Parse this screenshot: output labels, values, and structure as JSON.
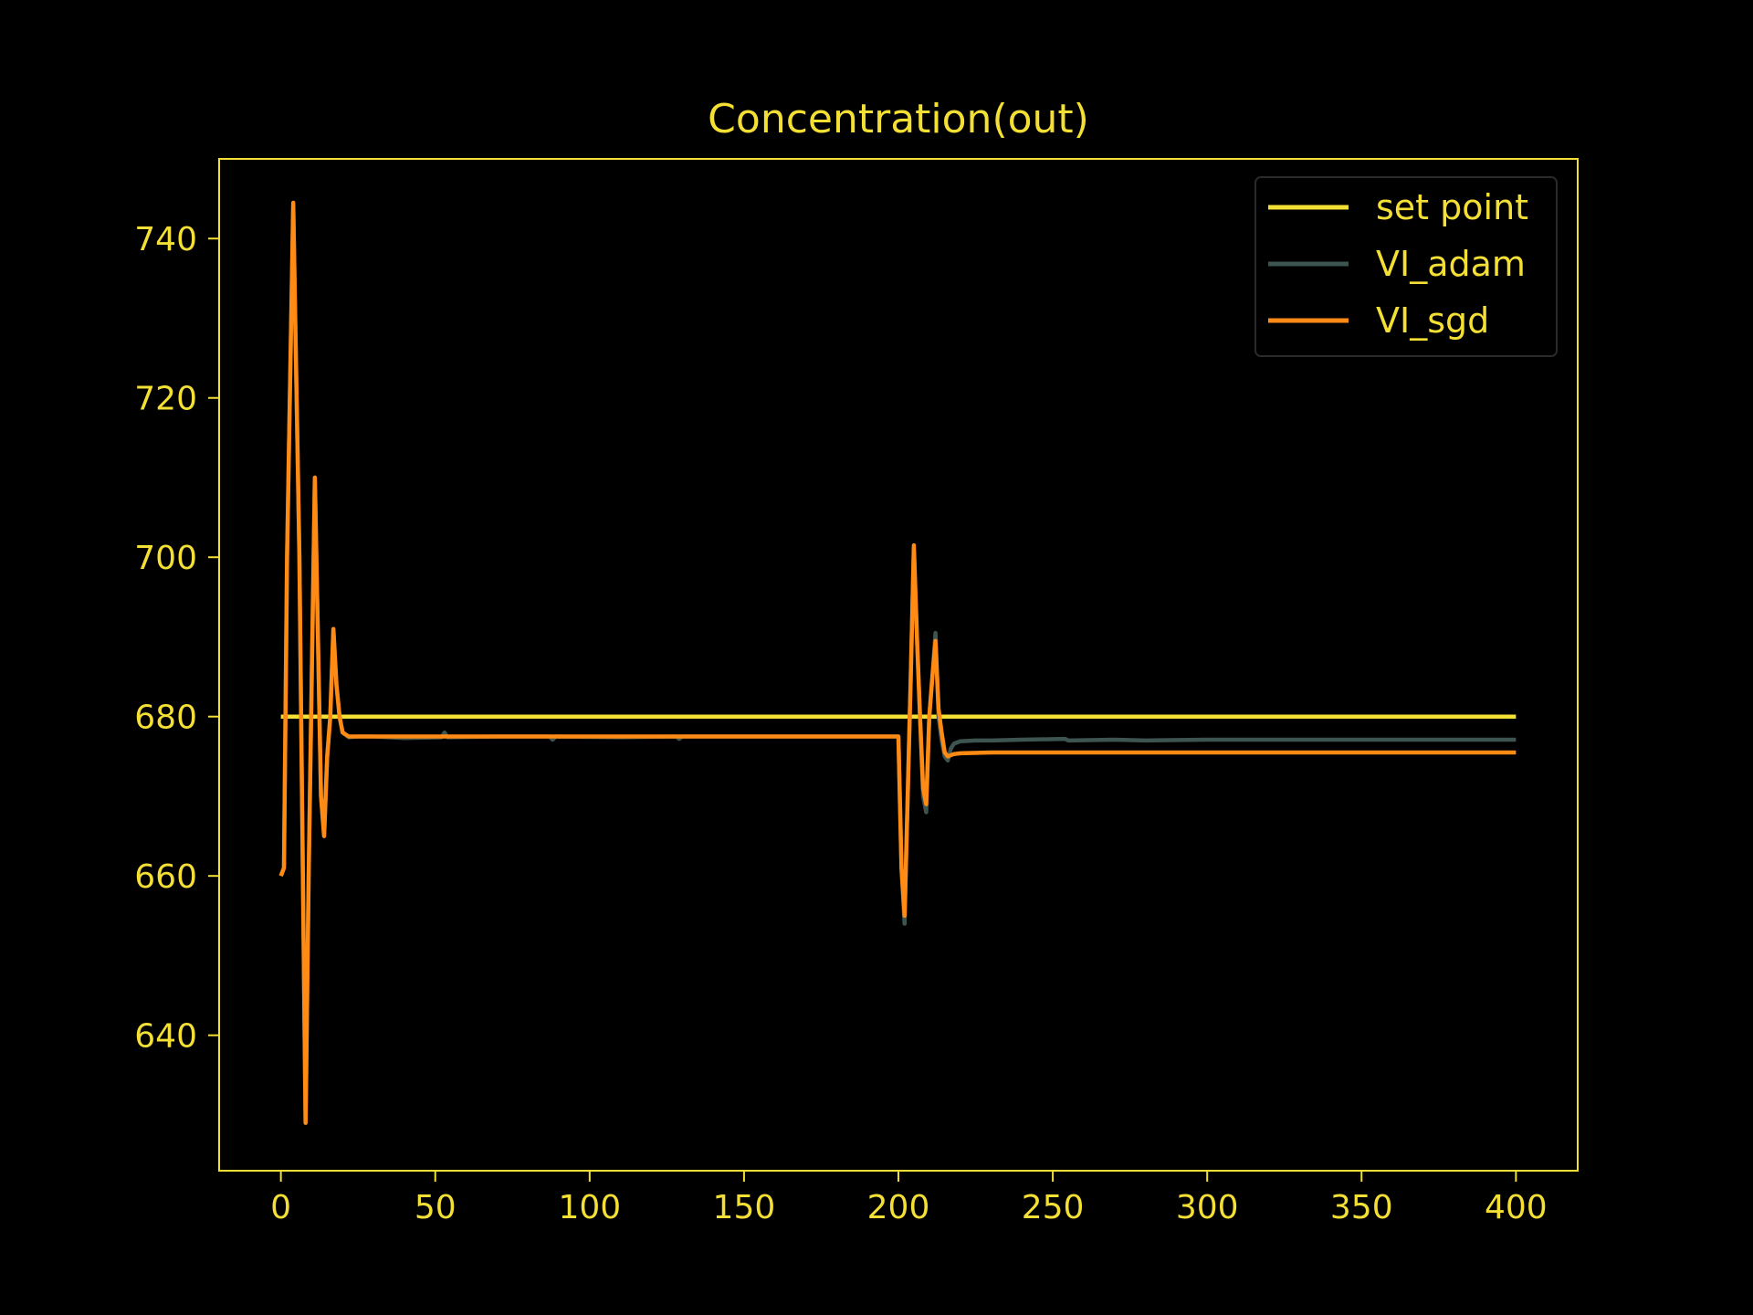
{
  "colors": {
    "background": "#000000",
    "foreground": "#f4df34",
    "set_point": "#f4df34",
    "vi_adam": "#3d5450",
    "vi_sgd": "#ff8a14",
    "legend_bg": "#000000",
    "legend_border": "#2a2a2a"
  },
  "chart_data": {
    "type": "line",
    "title": "Concentration(out)",
    "xlabel": "",
    "ylabel": "",
    "xlim": [
      -20,
      420
    ],
    "ylim": [
      623,
      750
    ],
    "grid": false,
    "legend_position": "upper right",
    "x_ticks": [
      0,
      50,
      100,
      150,
      200,
      250,
      300,
      350,
      400
    ],
    "y_ticks": [
      640,
      660,
      680,
      700,
      720,
      740
    ],
    "series": [
      {
        "name": "set point",
        "color_key": "set_point",
        "points": [
          [
            0,
            680
          ],
          [
            400,
            680
          ]
        ]
      },
      {
        "name": "VI_adam",
        "color_key": "vi_adam",
        "points": [
          [
            0,
            660
          ],
          [
            1,
            661
          ],
          [
            2,
            700
          ],
          [
            4,
            744
          ],
          [
            6,
            700
          ],
          [
            8,
            629
          ],
          [
            9,
            660
          ],
          [
            11,
            710
          ],
          [
            12,
            690
          ],
          [
            13,
            670
          ],
          [
            14,
            665
          ],
          [
            15,
            675
          ],
          [
            16,
            680
          ],
          [
            17,
            691
          ],
          [
            18,
            684
          ],
          [
            19,
            680
          ],
          [
            20,
            678
          ],
          [
            22,
            677.4
          ],
          [
            25,
            677.5
          ],
          [
            30,
            677.5
          ],
          [
            40,
            677.3
          ],
          [
            52,
            677.4
          ],
          [
            53,
            678.0
          ],
          [
            54,
            677.4
          ],
          [
            70,
            677.5
          ],
          [
            87,
            677.5
          ],
          [
            88,
            677.1
          ],
          [
            89,
            677.5
          ],
          [
            110,
            677.4
          ],
          [
            128,
            677.5
          ],
          [
            129,
            677.2
          ],
          [
            130,
            677.5
          ],
          [
            150,
            677.5
          ],
          [
            170,
            677.5
          ],
          [
            190,
            677.5
          ],
          [
            200,
            677.5
          ],
          [
            201,
            661
          ],
          [
            202,
            654
          ],
          [
            203,
            670
          ],
          [
            204,
            685
          ],
          [
            205,
            701
          ],
          [
            206,
            690
          ],
          [
            207,
            680
          ],
          [
            208,
            670
          ],
          [
            209,
            668
          ],
          [
            210,
            680
          ],
          [
            211,
            685
          ],
          [
            212,
            690.5
          ],
          [
            213,
            680
          ],
          [
            214,
            677
          ],
          [
            215,
            675
          ],
          [
            216,
            674.5
          ],
          [
            217,
            676
          ],
          [
            218,
            676.6
          ],
          [
            220,
            676.9
          ],
          [
            225,
            677.0
          ],
          [
            230,
            677.0
          ],
          [
            240,
            677.1
          ],
          [
            254,
            677.2
          ],
          [
            255,
            677.0
          ],
          [
            270,
            677.1
          ],
          [
            280,
            677.0
          ],
          [
            300,
            677.1
          ],
          [
            320,
            677.1
          ],
          [
            340,
            677.1
          ],
          [
            360,
            677.1
          ],
          [
            380,
            677.1
          ],
          [
            400,
            677.1
          ]
        ]
      },
      {
        "name": "VI_sgd",
        "color_key": "vi_sgd",
        "points": [
          [
            0,
            660
          ],
          [
            1,
            661
          ],
          [
            2,
            700
          ],
          [
            4,
            744.5
          ],
          [
            6,
            700
          ],
          [
            8,
            629
          ],
          [
            9,
            660
          ],
          [
            11,
            710
          ],
          [
            12,
            690
          ],
          [
            13,
            670
          ],
          [
            14,
            665
          ],
          [
            15,
            675
          ],
          [
            16,
            680
          ],
          [
            17,
            691
          ],
          [
            18,
            684
          ],
          [
            19,
            680
          ],
          [
            20,
            678
          ],
          [
            22,
            677.5
          ],
          [
            25,
            677.5
          ],
          [
            50,
            677.5
          ],
          [
            100,
            677.5
          ],
          [
            150,
            677.5
          ],
          [
            200,
            677.5
          ],
          [
            201,
            661
          ],
          [
            202,
            655
          ],
          [
            203,
            670
          ],
          [
            204,
            685
          ],
          [
            205,
            701.5
          ],
          [
            206,
            690
          ],
          [
            207,
            680
          ],
          [
            208,
            671
          ],
          [
            209,
            669
          ],
          [
            210,
            680
          ],
          [
            211,
            685
          ],
          [
            212,
            689.5
          ],
          [
            213,
            681
          ],
          [
            214,
            678
          ],
          [
            215,
            675.5
          ],
          [
            216,
            675
          ],
          [
            218,
            675.3
          ],
          [
            220,
            675.4
          ],
          [
            230,
            675.5
          ],
          [
            250,
            675.5
          ],
          [
            300,
            675.5
          ],
          [
            350,
            675.5
          ],
          [
            400,
            675.5
          ]
        ]
      }
    ]
  }
}
